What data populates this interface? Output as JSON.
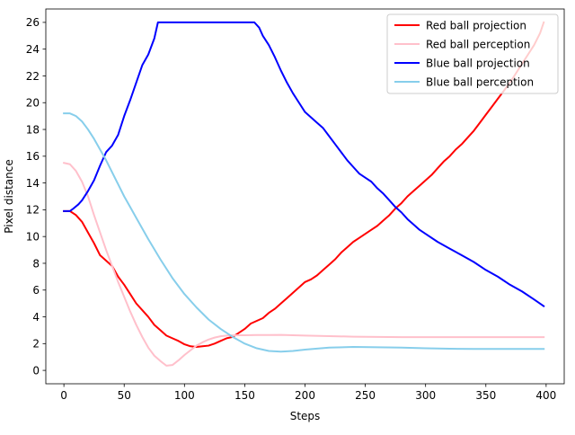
{
  "chart_data": {
    "type": "line",
    "title": "",
    "xlabel": "Steps",
    "ylabel": "Pixel distance",
    "xlim": [
      -15,
      415
    ],
    "ylim": [
      -1,
      27
    ],
    "xticks": [
      0,
      50,
      100,
      150,
      200,
      250,
      300,
      350,
      400
    ],
    "yticks": [
      0,
      2,
      4,
      6,
      8,
      10,
      12,
      14,
      16,
      18,
      20,
      22,
      24,
      26
    ],
    "grid": false,
    "legend_position": "top-right",
    "series": [
      {
        "name": "Red ball projection",
        "color": "#ff0000",
        "width": 2,
        "x": [
          0,
          5,
          10,
          15,
          20,
          25,
          30,
          35,
          40,
          45,
          50,
          55,
          60,
          65,
          70,
          75,
          80,
          85,
          90,
          95,
          100,
          105,
          110,
          115,
          120,
          125,
          130,
          135,
          140,
          145,
          150,
          155,
          160,
          165,
          170,
          175,
          180,
          185,
          190,
          195,
          200,
          205,
          210,
          215,
          220,
          225,
          230,
          235,
          240,
          245,
          250,
          255,
          260,
          265,
          270,
          275,
          280,
          285,
          290,
          295,
          300,
          305,
          310,
          315,
          320,
          325,
          330,
          335,
          340,
          345,
          350,
          355,
          360,
          365,
          370,
          375,
          380,
          385,
          390,
          395,
          398
        ],
        "y": [
          11.9,
          11.9,
          11.6,
          11.1,
          10.3,
          9.5,
          8.6,
          8.2,
          7.8,
          7.0,
          6.4,
          5.7,
          5.0,
          4.5,
          4.0,
          3.4,
          3.0,
          2.6,
          2.4,
          2.2,
          1.95,
          1.8,
          1.75,
          1.8,
          1.85,
          2.0,
          2.2,
          2.4,
          2.5,
          2.8,
          3.1,
          3.5,
          3.7,
          3.9,
          4.3,
          4.6,
          5.0,
          5.4,
          5.8,
          6.2,
          6.6,
          6.8,
          7.1,
          7.5,
          7.9,
          8.3,
          8.8,
          9.2,
          9.6,
          9.9,
          10.2,
          10.5,
          10.8,
          11.2,
          11.6,
          12.1,
          12.5,
          13.0,
          13.4,
          13.8,
          14.2,
          14.6,
          15.1,
          15.6,
          16.0,
          16.5,
          16.9,
          17.4,
          17.9,
          18.5,
          19.1,
          19.7,
          20.3,
          20.9,
          21.5,
          22.2,
          22.9,
          23.6,
          24.3,
          25.2,
          26.0
        ]
      },
      {
        "name": "Red ball perception",
        "color": "#ffc0cb",
        "width": 2,
        "x": [
          0,
          5,
          10,
          15,
          20,
          25,
          30,
          35,
          40,
          45,
          50,
          55,
          60,
          65,
          70,
          75,
          80,
          85,
          90,
          95,
          100,
          105,
          110,
          115,
          120,
          125,
          130,
          135,
          140,
          145,
          150,
          160,
          170,
          180,
          190,
          200,
          220,
          240,
          260,
          280,
          300,
          320,
          340,
          360,
          380,
          398
        ],
        "y": [
          15.5,
          15.4,
          14.9,
          14.1,
          13.0,
          11.6,
          10.3,
          9.0,
          7.8,
          6.6,
          5.5,
          4.4,
          3.4,
          2.5,
          1.7,
          1.1,
          0.7,
          0.35,
          0.4,
          0.75,
          1.15,
          1.5,
          1.85,
          2.1,
          2.3,
          2.45,
          2.55,
          2.6,
          2.62,
          2.63,
          2.63,
          2.64,
          2.64,
          2.65,
          2.63,
          2.6,
          2.56,
          2.52,
          2.5,
          2.48,
          2.48,
          2.48,
          2.48,
          2.48,
          2.48,
          2.48
        ]
      },
      {
        "name": "Blue ball projection",
        "color": "#0000ff",
        "width": 2,
        "x": [
          0,
          5,
          8,
          12,
          15,
          20,
          25,
          30,
          35,
          40,
          45,
          50,
          55,
          60,
          65,
          70,
          75,
          78,
          80,
          100,
          120,
          140,
          158,
          162,
          165,
          170,
          175,
          180,
          185,
          190,
          195,
          200,
          205,
          210,
          215,
          220,
          225,
          230,
          235,
          240,
          245,
          250,
          255,
          260,
          265,
          270,
          275,
          280,
          285,
          290,
          295,
          300,
          310,
          320,
          330,
          340,
          350,
          360,
          370,
          380,
          390,
          398
        ],
        "y": [
          11.9,
          11.9,
          12.1,
          12.4,
          12.7,
          13.4,
          14.2,
          15.3,
          16.3,
          16.8,
          17.6,
          19.0,
          20.2,
          21.5,
          22.8,
          23.6,
          24.8,
          26.0,
          26.0,
          26.0,
          26.0,
          26.0,
          26.0,
          25.6,
          25.0,
          24.3,
          23.4,
          22.4,
          21.5,
          20.7,
          20.0,
          19.3,
          18.9,
          18.5,
          18.1,
          17.5,
          16.9,
          16.3,
          15.7,
          15.2,
          14.7,
          14.4,
          14.1,
          13.6,
          13.2,
          12.7,
          12.2,
          11.8,
          11.3,
          10.9,
          10.5,
          10.2,
          9.6,
          9.1,
          8.6,
          8.1,
          7.5,
          7.0,
          6.4,
          5.9,
          5.3,
          4.8
        ]
      },
      {
        "name": "Blue ball perception",
        "color": "#87ceeb",
        "width": 2,
        "x": [
          0,
          5,
          10,
          15,
          20,
          25,
          30,
          35,
          40,
          45,
          50,
          55,
          60,
          70,
          80,
          90,
          100,
          110,
          120,
          130,
          140,
          150,
          160,
          170,
          180,
          190,
          200,
          220,
          240,
          260,
          280,
          300,
          320,
          340,
          360,
          380,
          398
        ],
        "y": [
          19.2,
          19.2,
          19.0,
          18.6,
          18.0,
          17.3,
          16.5,
          15.7,
          14.8,
          13.9,
          13.0,
          12.2,
          11.4,
          9.8,
          8.3,
          6.9,
          5.7,
          4.7,
          3.8,
          3.1,
          2.5,
          2.0,
          1.65,
          1.45,
          1.4,
          1.45,
          1.55,
          1.7,
          1.75,
          1.73,
          1.7,
          1.65,
          1.62,
          1.6,
          1.6,
          1.6,
          1.6
        ]
      }
    ]
  }
}
